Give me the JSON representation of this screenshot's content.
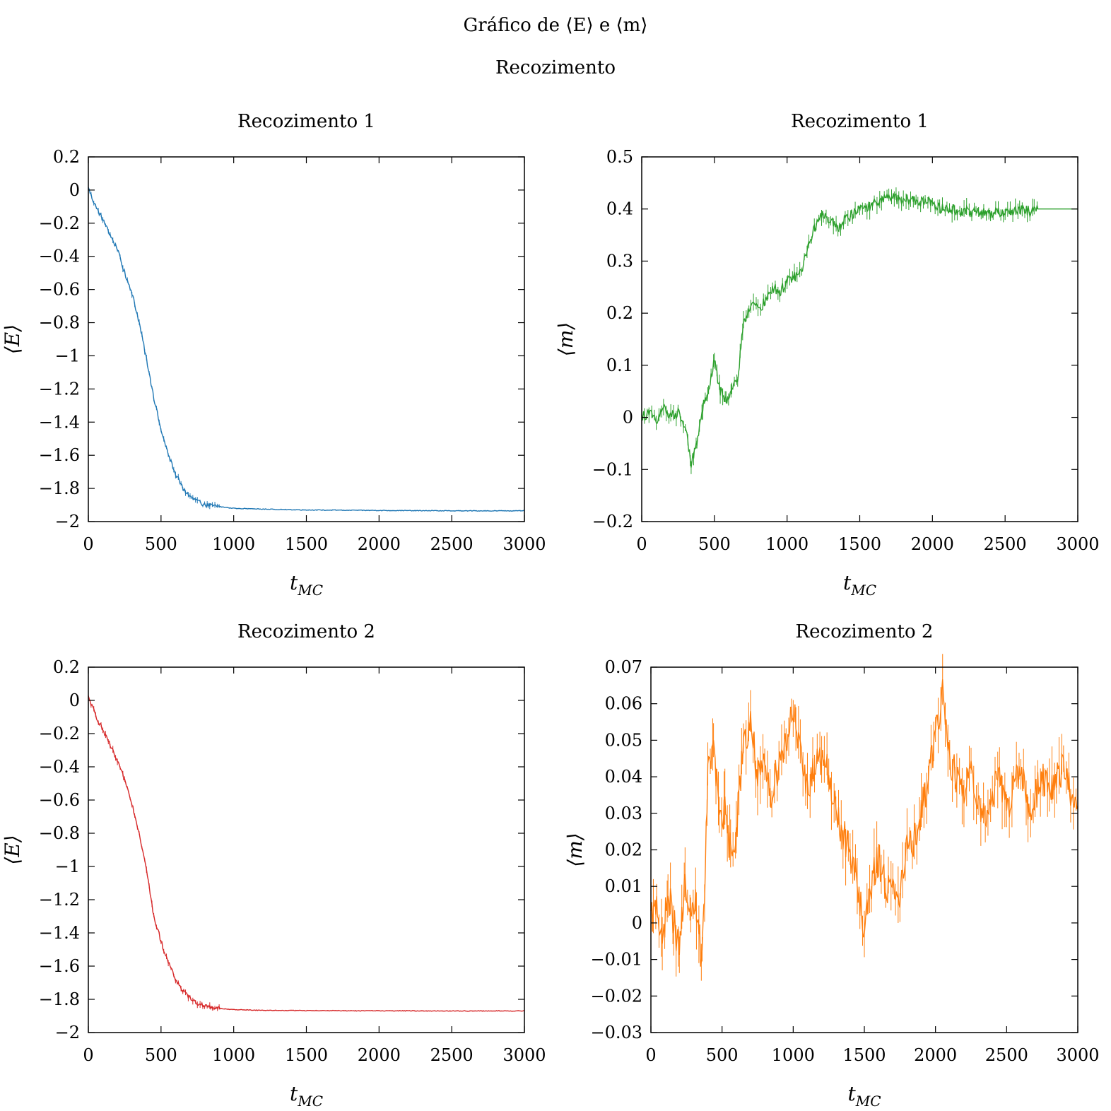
{
  "figure": {
    "title": "Gráfico de ⟨E⟩ e ⟨m⟩",
    "subtitle": "Recozimento"
  },
  "chart_data": [
    {
      "type": "line",
      "title": "Recozimento 1",
      "xlabel": "t_MC",
      "ylabel": "⟨E⟩",
      "xlim": [
        0,
        3000
      ],
      "ylim": [
        -2,
        0.2
      ],
      "xticks": [
        0,
        500,
        1000,
        1500,
        2000,
        2500,
        3000
      ],
      "yticks": [
        0.2,
        0,
        -0.2,
        -0.4,
        -0.6,
        -0.8,
        -1,
        -1.2,
        -1.4,
        -1.6,
        -1.8,
        -2
      ],
      "ytick_labels": [
        "0.2",
        "0",
        "−0.2",
        "−0.4",
        "−0.6",
        "−0.8",
        "−1",
        "−1.2",
        "−1.4",
        "−1.6",
        "−1.8",
        "−2"
      ],
      "color": "#1f77b4",
      "error_bars": true,
      "series": [
        {
          "x": [
            0,
            50,
            100,
            150,
            200,
            250,
            300,
            350,
            400,
            450,
            500,
            550,
            600,
            650,
            700,
            750,
            800,
            900,
            1000,
            1200,
            1500,
            2000,
            2500,
            3000
          ],
          "y": [
            0.01,
            -0.1,
            -0.18,
            -0.27,
            -0.36,
            -0.5,
            -0.62,
            -0.8,
            -1.02,
            -1.25,
            -1.45,
            -1.6,
            -1.71,
            -1.8,
            -1.85,
            -1.88,
            -1.9,
            -1.91,
            -1.92,
            -1.925,
            -1.93,
            -1.933,
            -1.935,
            -1.935
          ]
        }
      ]
    },
    {
      "type": "line",
      "title": "Recozimento 1",
      "xlabel": "t_MC",
      "ylabel": "⟨m⟩",
      "xlim": [
        0,
        3000
      ],
      "ylim": [
        -0.2,
        0.5
      ],
      "xticks": [
        0,
        500,
        1000,
        1500,
        2000,
        2500,
        3000
      ],
      "yticks": [
        0.5,
        0.4,
        0.3,
        0.2,
        0.1,
        0,
        -0.1,
        -0.2
      ],
      "ytick_labels": [
        "0.5",
        "0.4",
        "0.3",
        "0.2",
        "0.1",
        "0",
        "−0.1",
        "−0.2"
      ],
      "color": "#2ca02c",
      "error_bars": true,
      "series": [
        {
          "x": [
            0,
            50,
            100,
            150,
            200,
            250,
            300,
            340,
            380,
            420,
            460,
            500,
            540,
            580,
            620,
            660,
            700,
            750,
            800,
            850,
            900,
            950,
            1000,
            1050,
            1100,
            1150,
            1200,
            1250,
            1300,
            1350,
            1400,
            1450,
            1500,
            1550,
            1600,
            1650,
            1700,
            1750,
            1800,
            1850,
            1900,
            1950,
            2000,
            2050,
            2100,
            2200,
            2300,
            2400,
            2500,
            2600,
            2700,
            2720,
            3000
          ],
          "y": [
            0.0,
            0.01,
            -0.01,
            0.02,
            0.0,
            0.01,
            -0.02,
            -0.09,
            -0.05,
            0.02,
            0.05,
            0.11,
            0.05,
            0.03,
            0.06,
            0.07,
            0.18,
            0.22,
            0.21,
            0.22,
            0.25,
            0.24,
            0.26,
            0.27,
            0.28,
            0.33,
            0.37,
            0.39,
            0.38,
            0.36,
            0.38,
            0.39,
            0.4,
            0.405,
            0.41,
            0.415,
            0.425,
            0.42,
            0.415,
            0.42,
            0.415,
            0.41,
            0.415,
            0.4,
            0.4,
            0.395,
            0.395,
            0.39,
            0.395,
            0.398,
            0.395,
            0.4,
            0.4
          ]
        }
      ]
    },
    {
      "type": "line",
      "title": "Recozimento 2",
      "xlabel": "t_MC",
      "ylabel": "⟨E⟩",
      "xlim": [
        0,
        3000
      ],
      "ylim": [
        -2,
        0.2
      ],
      "xticks": [
        0,
        500,
        1000,
        1500,
        2000,
        2500,
        3000
      ],
      "yticks": [
        0.2,
        0,
        -0.2,
        -0.4,
        -0.6,
        -0.8,
        -1,
        -1.2,
        -1.4,
        -1.6,
        -1.8,
        -2
      ],
      "ytick_labels": [
        "0.2",
        "0",
        "−0.2",
        "−0.4",
        "−0.6",
        "−0.8",
        "−1",
        "−1.2",
        "−1.4",
        "−1.6",
        "−1.8",
        "−2"
      ],
      "color": "#d62728",
      "error_bars": true,
      "series": [
        {
          "x": [
            0,
            50,
            100,
            150,
            200,
            250,
            300,
            350,
            400,
            450,
            500,
            550,
            600,
            650,
            700,
            750,
            800,
            900,
            1000,
            1200,
            1500,
            2000,
            2500,
            3000
          ],
          "y": [
            0.02,
            -0.09,
            -0.18,
            -0.27,
            -0.37,
            -0.48,
            -0.62,
            -0.8,
            -1.02,
            -1.3,
            -1.45,
            -1.58,
            -1.68,
            -1.75,
            -1.79,
            -1.82,
            -1.84,
            -1.855,
            -1.862,
            -1.866,
            -1.868,
            -1.869,
            -1.87,
            -1.87
          ]
        }
      ]
    },
    {
      "type": "line",
      "title": "Recozimento 2",
      "xlabel": "t_MC",
      "ylabel": "⟨m⟩",
      "xlim": [
        0,
        3000
      ],
      "ylim": [
        -0.03,
        0.07
      ],
      "xticks": [
        0,
        500,
        1000,
        1500,
        2000,
        2500,
        3000
      ],
      "yticks": [
        0.07,
        0.06,
        0.05,
        0.04,
        0.03,
        0.02,
        0.01,
        0,
        -0.01,
        -0.02,
        -0.03
      ],
      "ytick_labels": [
        "0.07",
        "0.06",
        "0.05",
        "0.04",
        "0.03",
        "0.02",
        "0.01",
        "0",
        "−0.01",
        "−0.02",
        "−0.03"
      ],
      "color": "#ff7f0e",
      "error_bars": true,
      "series": [
        {
          "x": [
            0,
            40,
            80,
            120,
            160,
            200,
            240,
            280,
            320,
            360,
            400,
            440,
            480,
            520,
            560,
            600,
            650,
            700,
            750,
            800,
            850,
            900,
            950,
            1000,
            1050,
            1100,
            1150,
            1200,
            1250,
            1300,
            1350,
            1400,
            1450,
            1500,
            1550,
            1600,
            1650,
            1700,
            1750,
            1800,
            1850,
            1900,
            1950,
            2000,
            2050,
            2100,
            2150,
            2200,
            2250,
            2300,
            2350,
            2400,
            2450,
            2500,
            2550,
            2600,
            2650,
            2700,
            2750,
            2800,
            2850,
            2900,
            2950,
            3000
          ],
          "y": [
            0.0,
            0.005,
            -0.005,
            0.008,
            0.0,
            -0.008,
            0.01,
            0.0,
            0.005,
            -0.012,
            0.04,
            0.048,
            0.03,
            0.03,
            0.02,
            0.025,
            0.05,
            0.055,
            0.04,
            0.042,
            0.035,
            0.045,
            0.05,
            0.059,
            0.045,
            0.038,
            0.042,
            0.045,
            0.04,
            0.03,
            0.025,
            0.018,
            0.012,
            -0.002,
            0.01,
            0.018,
            0.01,
            0.008,
            0.005,
            0.025,
            0.022,
            0.03,
            0.04,
            0.05,
            0.065,
            0.045,
            0.04,
            0.035,
            0.045,
            0.032,
            0.03,
            0.035,
            0.04,
            0.03,
            0.04,
            0.042,
            0.03,
            0.035,
            0.04,
            0.035,
            0.04,
            0.042,
            0.035,
            0.032
          ]
        }
      ]
    }
  ]
}
